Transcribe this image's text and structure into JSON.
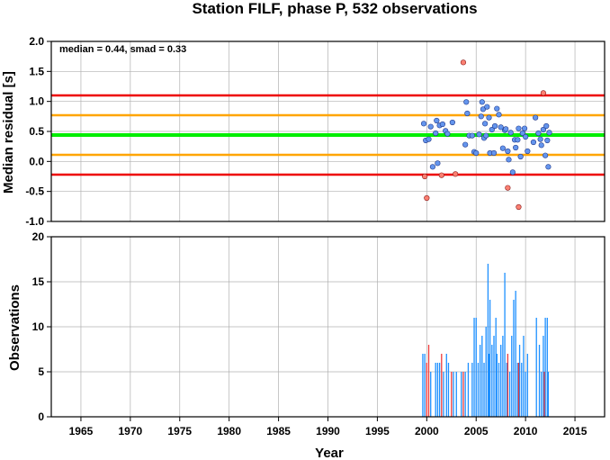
{
  "colors": {
    "median_line": "#00ee00",
    "smad1_line": "#ffa500",
    "smad2_line": "#ee0000",
    "point_normal": "#6495ed",
    "point_outlier": "#fa8072",
    "bar_normal": "#1e90ff",
    "bar_outlier": "#ee3b3b",
    "grid": "#b0b0b0"
  },
  "chart_data": [
    {
      "type": "scatter",
      "title": "Station FILF, phase P, 532 observations",
      "ylabel": "Median residual [s]",
      "annotation": "median = 0.44, smad = 0.33",
      "xlim": [
        1962,
        2018
      ],
      "ylim": [
        -1.0,
        2.0
      ],
      "yticks": [
        "-1.0",
        "-0.5",
        "0.0",
        "0.5",
        "1.0",
        "1.5",
        "2.0"
      ],
      "xticks": [
        "1965",
        "1970",
        "1975",
        "1980",
        "1985",
        "1990",
        "1995",
        "2000",
        "2005",
        "2010",
        "2015"
      ],
      "grid": true,
      "hlines": [
        {
          "y": 0.44,
          "color_key": "median_line"
        },
        {
          "y": 0.77,
          "color_key": "smad1_line"
        },
        {
          "y": 0.11,
          "color_key": "smad1_line"
        },
        {
          "y": 1.1,
          "color_key": "smad2_line"
        },
        {
          "y": -0.22,
          "color_key": "smad2_line"
        }
      ],
      "points_normal": [
        [
          1999.7,
          0.63
        ],
        [
          1999.9,
          0.35
        ],
        [
          2000.2,
          0.37
        ],
        [
          2000.4,
          0.58
        ],
        [
          2000.6,
          -0.09
        ],
        [
          2000.9,
          0.47
        ],
        [
          2001.0,
          0.68
        ],
        [
          2001.1,
          -0.03
        ],
        [
          2001.3,
          0.6
        ],
        [
          2001.6,
          0.62
        ],
        [
          2001.9,
          0.51
        ],
        [
          2002.1,
          0.46
        ],
        [
          2002.6,
          0.65
        ],
        [
          2003.9,
          0.28
        ],
        [
          2004.0,
          0.99
        ],
        [
          2004.1,
          0.8
        ],
        [
          2004.3,
          0.43
        ],
        [
          2004.6,
          0.43
        ],
        [
          2004.8,
          0.16
        ],
        [
          2005.0,
          0.14
        ],
        [
          2005.3,
          0.45
        ],
        [
          2005.5,
          0.75
        ],
        [
          2005.6,
          0.99
        ],
        [
          2005.7,
          0.87
        ],
        [
          2005.8,
          0.39
        ],
        [
          2005.9,
          0.63
        ],
        [
          2006.0,
          0.43
        ],
        [
          2006.1,
          0.91
        ],
        [
          2006.3,
          0.73
        ],
        [
          2006.4,
          0.14
        ],
        [
          2006.6,
          0.53
        ],
        [
          2006.8,
          0.14
        ],
        [
          2006.9,
          0.59
        ],
        [
          2007.1,
          0.88
        ],
        [
          2007.3,
          0.78
        ],
        [
          2007.5,
          0.57
        ],
        [
          2007.7,
          0.22
        ],
        [
          2007.9,
          0.52
        ],
        [
          2008.0,
          0.54
        ],
        [
          2008.2,
          0.17
        ],
        [
          2008.3,
          0.03
        ],
        [
          2008.5,
          0.48
        ],
        [
          2008.7,
          -0.18
        ],
        [
          2008.9,
          0.36
        ],
        [
          2009.0,
          0.23
        ],
        [
          2009.2,
          0.36
        ],
        [
          2009.3,
          0.55
        ],
        [
          2009.5,
          0.08
        ],
        [
          2009.7,
          0.47
        ],
        [
          2009.9,
          0.55
        ],
        [
          2010.0,
          0.41
        ],
        [
          2010.2,
          0.17
        ],
        [
          2010.8,
          0.32
        ],
        [
          2011.0,
          0.73
        ],
        [
          2011.3,
          0.47
        ],
        [
          2011.5,
          0.37
        ],
        [
          2011.6,
          0.27
        ],
        [
          2011.8,
          0.53
        ],
        [
          2012.0,
          0.1
        ],
        [
          2012.1,
          0.59
        ],
        [
          2012.2,
          0.35
        ],
        [
          2012.3,
          -0.09
        ],
        [
          2012.4,
          0.48
        ]
      ],
      "points_outlier": [
        [
          1999.8,
          -0.25
        ],
        [
          2000.0,
          -0.61
        ],
        [
          2001.5,
          -0.23
        ],
        [
          2002.9,
          -0.21
        ],
        [
          2003.7,
          1.65
        ],
        [
          2008.2,
          -0.44
        ],
        [
          2009.3,
          -0.76
        ],
        [
          2011.8,
          1.14
        ]
      ]
    },
    {
      "type": "bar",
      "ylabel": "Observations",
      "xlabel": "Year",
      "xlim": [
        1962,
        2018
      ],
      "ylim": [
        0,
        20
      ],
      "yticks": [
        "0",
        "5",
        "10",
        "15",
        "20"
      ],
      "xticks": [
        "1965",
        "1970",
        "1975",
        "1980",
        "1985",
        "1990",
        "1995",
        "2000",
        "2005",
        "2010",
        "2015"
      ],
      "grid": true,
      "bars_normal": [
        [
          1999.6,
          7
        ],
        [
          1999.8,
          7
        ],
        [
          2000.4,
          5
        ],
        [
          2000.9,
          6
        ],
        [
          2001.1,
          6
        ],
        [
          2001.3,
          6
        ],
        [
          2001.7,
          5
        ],
        [
          2002.0,
          7
        ],
        [
          2002.2,
          6
        ],
        [
          2002.7,
          5
        ],
        [
          2003.0,
          5
        ],
        [
          2003.5,
          5
        ],
        [
          2003.9,
          5
        ],
        [
          2004.2,
          6
        ],
        [
          2004.6,
          6
        ],
        [
          2004.8,
          11
        ],
        [
          2005.0,
          11
        ],
        [
          2005.2,
          6
        ],
        [
          2005.4,
          8
        ],
        [
          2005.6,
          9
        ],
        [
          2005.8,
          6
        ],
        [
          2006.0,
          10
        ],
        [
          2006.2,
          17
        ],
        [
          2006.3,
          7
        ],
        [
          2006.4,
          13
        ],
        [
          2006.6,
          8
        ],
        [
          2006.8,
          9
        ],
        [
          2007.0,
          11
        ],
        [
          2007.1,
          7
        ],
        [
          2007.3,
          6
        ],
        [
          2007.5,
          8
        ],
        [
          2007.7,
          9
        ],
        [
          2007.9,
          16
        ],
        [
          2008.1,
          6
        ],
        [
          2008.4,
          5
        ],
        [
          2008.6,
          9
        ],
        [
          2008.8,
          13
        ],
        [
          2009.0,
          14
        ],
        [
          2009.2,
          6
        ],
        [
          2009.4,
          8
        ],
        [
          2009.6,
          6
        ],
        [
          2009.8,
          9
        ],
        [
          2010.0,
          5
        ],
        [
          2010.2,
          7
        ],
        [
          2011.1,
          11
        ],
        [
          2011.4,
          8
        ],
        [
          2011.6,
          5
        ],
        [
          2011.8,
          9
        ],
        [
          2012.0,
          11
        ],
        [
          2012.2,
          11
        ],
        [
          2012.3,
          5
        ]
      ],
      "bars_outlier": [
        [
          2000.0,
          6
        ],
        [
          2000.2,
          8
        ],
        [
          2001.5,
          7
        ],
        [
          2002.5,
          5
        ],
        [
          2003.7,
          5
        ],
        [
          2008.2,
          7
        ],
        [
          2009.3,
          6
        ],
        [
          2011.9,
          5
        ]
      ]
    }
  ]
}
